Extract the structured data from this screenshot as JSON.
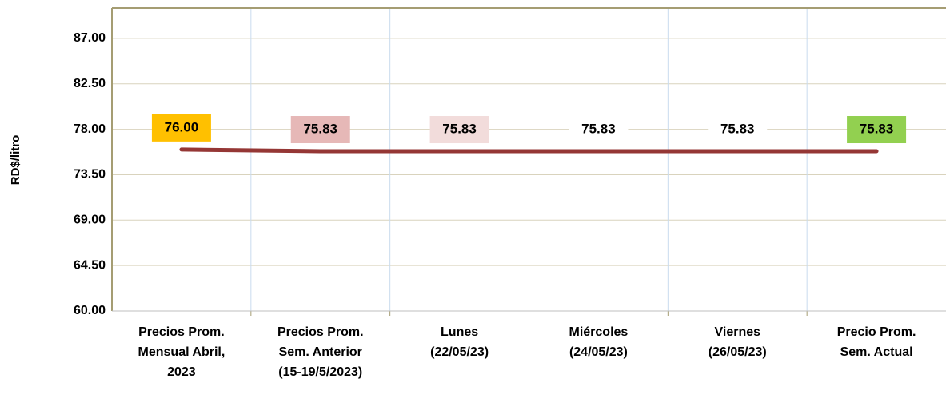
{
  "chart_data": {
    "type": "line",
    "y_label": "RD$/litro",
    "categories": [
      [
        "Precios Prom.",
        "Mensual Abril,",
        "2023"
      ],
      [
        "Precios Prom.",
        "Sem. Anterior",
        "(15-19/5/2023)"
      ],
      [
        "Lunes",
        "(22/05/23)"
      ],
      [
        "Miércoles",
        "(24/05/23)"
      ],
      [
        "Viernes",
        "(26/05/23)"
      ],
      [
        "Precio Prom.",
        "Sem. Actual"
      ]
    ],
    "values": [
      76.0,
      75.83,
      75.83,
      75.83,
      75.83,
      75.83
    ],
    "value_labels": [
      "76.00",
      "75.83",
      "75.83",
      "75.83",
      "75.83",
      "75.83"
    ],
    "label_colors": [
      "#ffc000",
      "#e6b8b7",
      "#f2dcdb",
      "#ffffff",
      "#ffffff",
      "#92d050"
    ],
    "color": "#953735",
    "ylim": [
      60,
      90
    ],
    "yticks": [
      {
        "value": 60,
        "label": "60.00"
      },
      {
        "value": 64.5,
        "label": "64.50"
      },
      {
        "value": 69,
        "label": "69.00"
      },
      {
        "value": 73.5,
        "label": "73.50"
      },
      {
        "value": 78,
        "label": "78.00"
      },
      {
        "value": 82.5,
        "label": "82.50"
      },
      {
        "value": 87,
        "label": "87.00"
      }
    ],
    "grid": true
  }
}
